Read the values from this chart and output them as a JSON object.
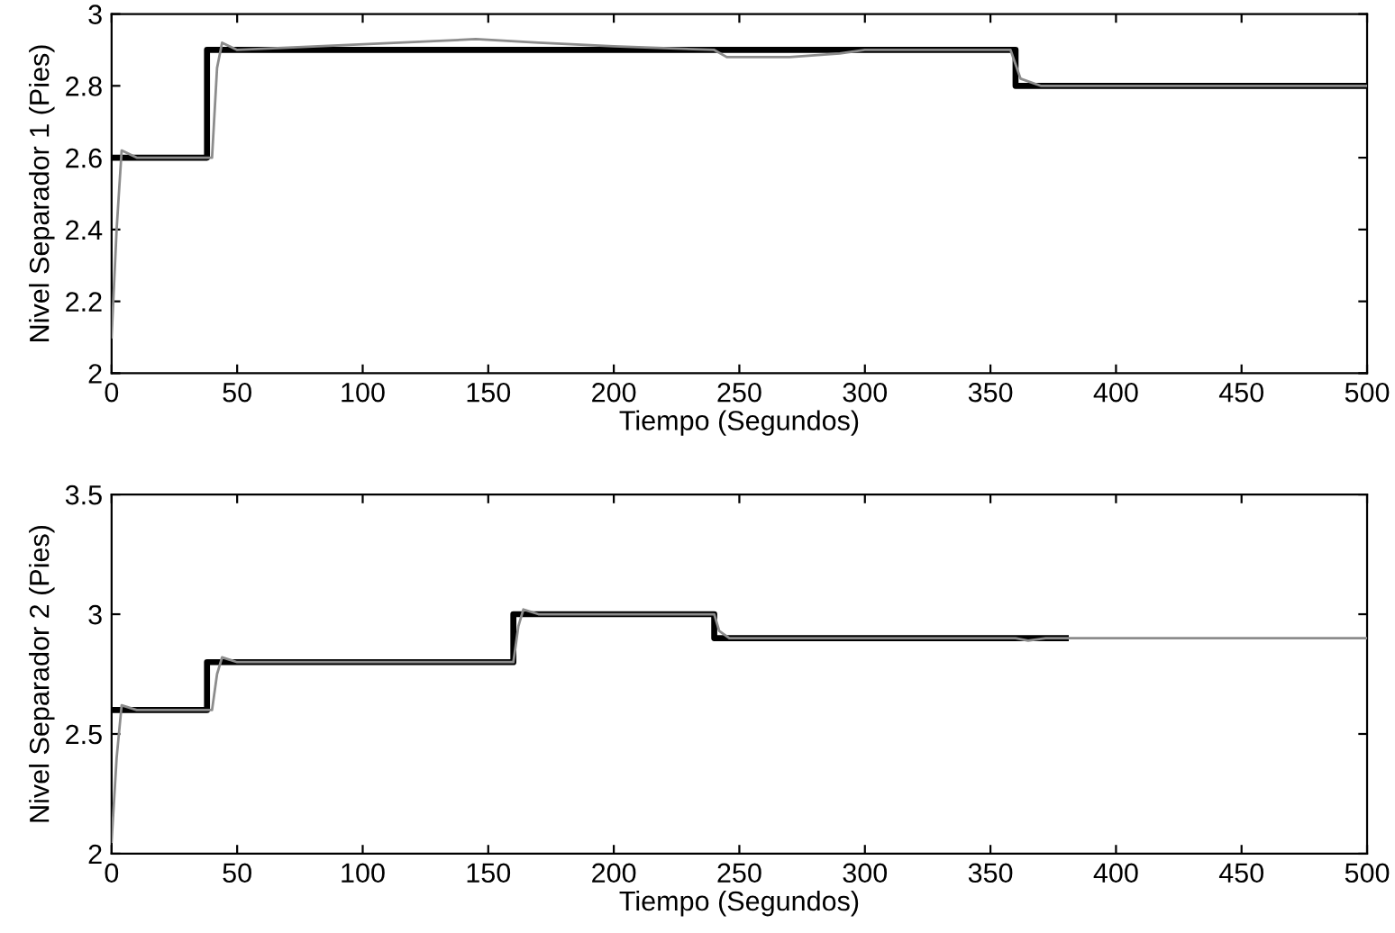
{
  "chart_data": [
    {
      "type": "line",
      "xlabel": "Tiempo (Segundos)",
      "ylabel": "Nivel Separador 1 (Pies)",
      "xlim": [
        0,
        500
      ],
      "ylim": [
        2,
        3
      ],
      "xticks": [
        0,
        50,
        100,
        150,
        200,
        250,
        300,
        350,
        400,
        450,
        500
      ],
      "yticks": [
        2,
        2.2,
        2.4,
        2.6,
        2.8,
        3
      ],
      "grid": false,
      "series": [
        {
          "color": "#000000",
          "x": [
            0,
            38,
            38,
            360,
            360,
            500
          ],
          "values": [
            2.6,
            2.6,
            2.9,
            2.9,
            2.8,
            2.8
          ]
        },
        {
          "color": "#8c8c8c",
          "x": [
            0,
            2,
            4,
            10,
            40,
            42,
            44,
            50,
            145,
            170,
            200,
            240,
            245,
            270,
            290,
            300,
            358,
            362,
            370,
            500
          ],
          "values": [
            2.1,
            2.4,
            2.62,
            2.6,
            2.6,
            2.85,
            2.92,
            2.9,
            2.93,
            2.92,
            2.91,
            2.9,
            2.88,
            2.88,
            2.89,
            2.9,
            2.9,
            2.82,
            2.8,
            2.8
          ]
        }
      ]
    },
    {
      "type": "line",
      "xlabel": "Tiempo (Segundos)",
      "ylabel": "Nivel Separador 2 (Pies)",
      "xlim": [
        0,
        500
      ],
      "ylim": [
        2,
        3.5
      ],
      "xticks": [
        0,
        50,
        100,
        150,
        200,
        250,
        300,
        350,
        400,
        450,
        500
      ],
      "yticks": [
        2,
        2.5,
        3,
        3.5
      ],
      "grid": false,
      "series": [
        {
          "color": "#000000",
          "x": [
            0,
            38,
            38,
            160,
            160,
            240,
            240,
            380
          ],
          "values": [
            2.6,
            2.6,
            2.8,
            2.8,
            3.0,
            3.0,
            2.9,
            2.9
          ]
        },
        {
          "color": "#8c8c8c",
          "x": [
            0,
            2,
            4,
            10,
            40,
            42,
            44,
            50,
            160,
            162,
            164,
            170,
            240,
            242,
            246,
            250,
            360,
            365,
            372,
            380,
            500
          ],
          "values": [
            2.05,
            2.4,
            2.62,
            2.6,
            2.6,
            2.75,
            2.82,
            2.8,
            2.8,
            2.95,
            3.02,
            3.0,
            3.0,
            2.93,
            2.9,
            2.9,
            2.9,
            2.89,
            2.9,
            2.9,
            2.9
          ]
        }
      ]
    }
  ]
}
